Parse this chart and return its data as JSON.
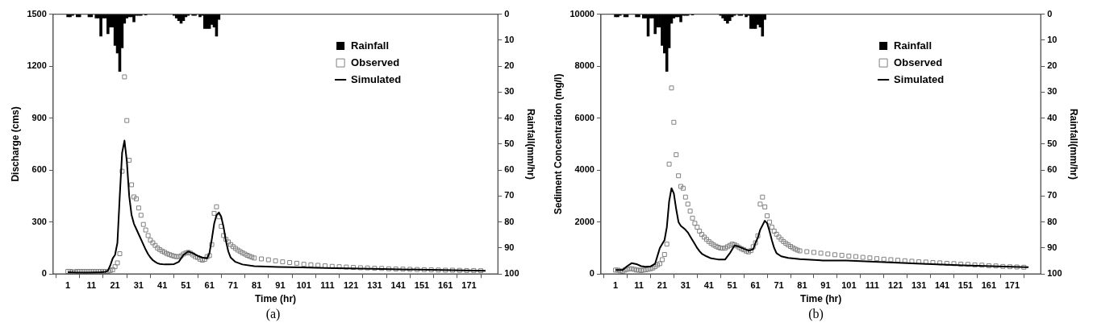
{
  "chart_data": [
    {
      "type": "line",
      "title": "(a)",
      "xlabel": "Time (hr)",
      "ylabel": "Discharge (cms)",
      "y2label": "Rainfall(mm/hr)",
      "xlim": [
        0,
        178
      ],
      "xticks": [
        1,
        11,
        21,
        31,
        41,
        51,
        61,
        71,
        81,
        91,
        101,
        111,
        121,
        131,
        141,
        151,
        161,
        171
      ],
      "ylim": [
        0,
        1500
      ],
      "yticks": [
        0,
        300,
        600,
        900,
        1200,
        1500
      ],
      "y2lim": [
        100,
        0
      ],
      "y2ticks": [
        0,
        10,
        20,
        30,
        40,
        50,
        60,
        70,
        80,
        90,
        100
      ],
      "grid": false,
      "legend": "top right",
      "series": [
        {
          "name": "Rainfall",
          "type": "bar",
          "axis": "y2",
          "color": "#000000",
          "x": [
            1,
            2,
            3,
            4,
            5,
            6,
            7,
            8,
            9,
            10,
            11,
            12,
            13,
            14,
            15,
            16,
            17,
            18,
            19,
            20,
            21,
            22,
            23,
            24,
            25,
            26,
            27,
            28,
            29,
            30,
            31,
            32,
            33,
            34,
            35,
            36,
            37,
            38,
            39,
            40,
            41,
            42,
            43,
            44,
            45,
            46,
            47,
            48,
            49,
            50,
            51,
            52,
            53,
            54,
            55,
            56,
            57,
            58,
            59,
            60,
            61,
            62,
            63,
            64,
            65,
            66,
            67,
            68,
            69,
            70
          ],
          "values": [
            1,
            1,
            0.5,
            0,
            1,
            1,
            0,
            0,
            0,
            1,
            1,
            0,
            1.5,
            1.5,
            8.5,
            1.5,
            1.5,
            7.5,
            5,
            5,
            12,
            15,
            22,
            13,
            3.5,
            1.5,
            1,
            1,
            3,
            0.5,
            0.5,
            0.5,
            0,
            0.3,
            0,
            0,
            0,
            0,
            0,
            0,
            0,
            0,
            0,
            0,
            0,
            0.5,
            1.5,
            2.5,
            3.5,
            2.5,
            1,
            0.5,
            0,
            0.5,
            0.5,
            0,
            1,
            0.5,
            5.5,
            5.5,
            5.5,
            4,
            5,
            8.5,
            2,
            0,
            0,
            0,
            0,
            0
          ]
        },
        {
          "name": "Observed",
          "type": "scatter",
          "marker": "square",
          "color": "#808080",
          "x": [
            1,
            2,
            3,
            4,
            5,
            6,
            7,
            8,
            9,
            10,
            11,
            12,
            13,
            14,
            15,
            16,
            17,
            18,
            19,
            20,
            21,
            22,
            23,
            24,
            25,
            26,
            27,
            28,
            29,
            30,
            31,
            32,
            33,
            34,
            35,
            36,
            37,
            38,
            39,
            40,
            41,
            42,
            43,
            44,
            45,
            46,
            47,
            48,
            49,
            50,
            51,
            52,
            53,
            54,
            55,
            56,
            57,
            58,
            59,
            60,
            61,
            62,
            63,
            64,
            65,
            66,
            67,
            68,
            69,
            70,
            71,
            72,
            73,
            74,
            75,
            76,
            77,
            78,
            79,
            80,
            83,
            86,
            89,
            92,
            95,
            98,
            101,
            104,
            107,
            110,
            113,
            116,
            119,
            122,
            125,
            128,
            131,
            134,
            137,
            140,
            143,
            146,
            149,
            152,
            155,
            158,
            161,
            164,
            167,
            170,
            173,
            176
          ],
          "values": [
            15,
            15,
            12,
            12,
            15,
            15,
            15,
            15,
            15,
            15,
            15,
            15,
            15,
            15,
            15,
            15,
            15,
            15,
            20,
            25,
            42,
            64,
            117,
            593,
            1138,
            886,
            657,
            515,
            445,
            434,
            381,
            339,
            286,
            254,
            222,
            195,
            180,
            165,
            150,
            140,
            132,
            125,
            118,
            112,
            107,
            103,
            100,
            100,
            105,
            115,
            121,
            125,
            120,
            110,
            100,
            95,
            85,
            80,
            85,
            100,
            106,
            170,
            350,
            388,
            330,
            275,
            222,
            200,
            185,
            170,
            158,
            148,
            138,
            130,
            122,
            115,
            108,
            102,
            97,
            92,
            87,
            82,
            76,
            70,
            66,
            62,
            56,
            53,
            50,
            47,
            44,
            42,
            40,
            38,
            36,
            35,
            33,
            32,
            30,
            29,
            28,
            27,
            26,
            25,
            24,
            23,
            22,
            22,
            21,
            20,
            20,
            19
          ]
        },
        {
          "name": "Simulated",
          "marker": "none",
          "line_style": "solid",
          "color": "#000000",
          "x": [
            1,
            5,
            10,
            15,
            17,
            18,
            19,
            20,
            21,
            22,
            23,
            24,
            25,
            26,
            27,
            28,
            29,
            30,
            31,
            32,
            33,
            34,
            35,
            36,
            37,
            38,
            39,
            40,
            42,
            44,
            46,
            48,
            50,
            52,
            54,
            56,
            58,
            60,
            61,
            62,
            63,
            64,
            65,
            66,
            67,
            68,
            69,
            70,
            72,
            75,
            80,
            90,
            100,
            110,
            130,
            150,
            178
          ],
          "values": [
            10,
            8,
            8,
            10,
            12,
            20,
            50,
            90,
            110,
            180,
            450,
            700,
            770,
            650,
            450,
            340,
            290,
            260,
            230,
            200,
            170,
            140,
            115,
            95,
            80,
            70,
            62,
            58,
            55,
            55,
            57,
            70,
            110,
            130,
            120,
            105,
            95,
            90,
            120,
            200,
            290,
            340,
            355,
            330,
            270,
            190,
            130,
            95,
            70,
            55,
            45,
            40,
            38,
            35,
            30,
            25,
            18
          ]
        }
      ]
    },
    {
      "type": "line",
      "title": "(b)",
      "xlabel": "Time (hr)",
      "ylabel": "Sediment Concentration (mg/l)",
      "y2label": "Rainfall(mm/hr)",
      "xlim": [
        0,
        178
      ],
      "xticks": [
        1,
        11,
        21,
        31,
        41,
        51,
        61,
        71,
        81,
        91,
        101,
        111,
        121,
        131,
        141,
        151,
        161,
        171
      ],
      "ylim": [
        0,
        10000
      ],
      "yticks": [
        0,
        2000,
        4000,
        6000,
        8000,
        10000
      ],
      "y2lim": [
        100,
        0
      ],
      "y2ticks": [
        0,
        10,
        20,
        30,
        40,
        50,
        60,
        70,
        80,
        90,
        100
      ],
      "grid": false,
      "legend": "top right",
      "series": [
        {
          "name": "Rainfall",
          "type": "bar",
          "axis": "y2",
          "color": "#000000",
          "x": [
            1,
            2,
            3,
            4,
            5,
            6,
            7,
            8,
            9,
            10,
            11,
            12,
            13,
            14,
            15,
            16,
            17,
            18,
            19,
            20,
            21,
            22,
            23,
            24,
            25,
            26,
            27,
            28,
            29,
            30,
            31,
            32,
            33,
            34,
            35,
            36,
            37,
            38,
            39,
            40,
            41,
            42,
            43,
            44,
            45,
            46,
            47,
            48,
            49,
            50,
            51,
            52,
            53,
            54,
            55,
            56,
            57,
            58,
            59,
            60,
            61,
            62,
            63,
            64,
            65,
            66,
            67,
            68,
            69,
            70
          ],
          "values": [
            1,
            1,
            0.5,
            0,
            1,
            1,
            0,
            0,
            0,
            1,
            1,
            0,
            1.5,
            1.5,
            8.5,
            1.5,
            1.5,
            7.5,
            5,
            5,
            12,
            15,
            22,
            13,
            3.5,
            1.5,
            1,
            1,
            3,
            0.5,
            0.5,
            0.5,
            0,
            0.3,
            0,
            0,
            0,
            0,
            0,
            0,
            0,
            0,
            0,
            0,
            0,
            0.5,
            1.5,
            2.5,
            3.5,
            2.5,
            1,
            0.5,
            0,
            0.5,
            0.5,
            0,
            1,
            0.5,
            5.5,
            5.5,
            5.5,
            4,
            5,
            8.5,
            2,
            0,
            0,
            0,
            0,
            0
          ]
        },
        {
          "name": "Observed",
          "type": "scatter",
          "marker": "square",
          "color": "#808080",
          "x": [
            1,
            2,
            3,
            4,
            5,
            6,
            7,
            8,
            9,
            10,
            11,
            12,
            13,
            14,
            15,
            16,
            17,
            18,
            19,
            20,
            21,
            22,
            23,
            24,
            25,
            26,
            27,
            28,
            29,
            30,
            31,
            32,
            33,
            34,
            35,
            36,
            37,
            38,
            39,
            40,
            41,
            42,
            43,
            44,
            45,
            46,
            47,
            48,
            49,
            50,
            51,
            52,
            53,
            54,
            55,
            56,
            57,
            58,
            59,
            60,
            61,
            62,
            63,
            64,
            65,
            66,
            67,
            68,
            69,
            70,
            71,
            72,
            73,
            74,
            75,
            76,
            77,
            78,
            79,
            80,
            83,
            86,
            89,
            92,
            95,
            98,
            101,
            104,
            107,
            110,
            113,
            116,
            119,
            122,
            125,
            128,
            131,
            134,
            137,
            140,
            143,
            146,
            149,
            152,
            155,
            158,
            161,
            164,
            167,
            170,
            173,
            176
          ],
          "values": [
            150,
            150,
            120,
            100,
            150,
            180,
            200,
            200,
            180,
            150,
            150,
            130,
            150,
            160,
            180,
            200,
            230,
            280,
            350,
            400,
            550,
            750,
            1150,
            4230,
            7160,
            5840,
            4590,
            3780,
            3370,
            3300,
            2960,
            2690,
            2420,
            2150,
            1950,
            1800,
            1650,
            1520,
            1420,
            1330,
            1250,
            1180,
            1120,
            1070,
            1030,
            1000,
            990,
            1000,
            1050,
            1100,
            1150,
            1130,
            1080,
            1020,
            970,
            930,
            880,
            850,
            900,
            1050,
            1200,
            1470,
            2690,
            2960,
            2580,
            2240,
            2000,
            1800,
            1650,
            1530,
            1420,
            1330,
            1250,
            1180,
            1120,
            1060,
            1010,
            960,
            920,
            890,
            860,
            830,
            800,
            770,
            740,
            720,
            690,
            670,
            640,
            620,
            590,
            570,
            550,
            530,
            510,
            490,
            470,
            460,
            440,
            430,
            410,
            400,
            380,
            370,
            350,
            340,
            320,
            310,
            290,
            280,
            270,
            260
          ]
        },
        {
          "name": "Simulated",
          "marker": "none",
          "line_style": "solid",
          "color": "#000000",
          "x": [
            1,
            4,
            6,
            8,
            10,
            12,
            14,
            16,
            18,
            19,
            20,
            21,
            22,
            23,
            24,
            25,
            26,
            27,
            28,
            29,
            30,
            31,
            32,
            33,
            34,
            35,
            36,
            37,
            38,
            40,
            42,
            45,
            48,
            50,
            52,
            54,
            56,
            58,
            60,
            61,
            62,
            63,
            65,
            66,
            67,
            68,
            69,
            70,
            72,
            75,
            80,
            90,
            100,
            110,
            130,
            150,
            178
          ],
          "values": [
            150,
            150,
            300,
            420,
            380,
            300,
            280,
            290,
            400,
            700,
            1000,
            1150,
            1300,
            1800,
            2800,
            3300,
            3100,
            2500,
            2000,
            1850,
            1780,
            1700,
            1600,
            1450,
            1300,
            1150,
            1000,
            880,
            780,
            680,
            600,
            560,
            560,
            800,
            1100,
            1050,
            970,
            900,
            950,
            1200,
            1400,
            1700,
            2050,
            1950,
            1650,
            1300,
            1000,
            800,
            680,
            620,
            570,
            520,
            520,
            480,
            400,
            330,
            260
          ]
        }
      ]
    }
  ]
}
